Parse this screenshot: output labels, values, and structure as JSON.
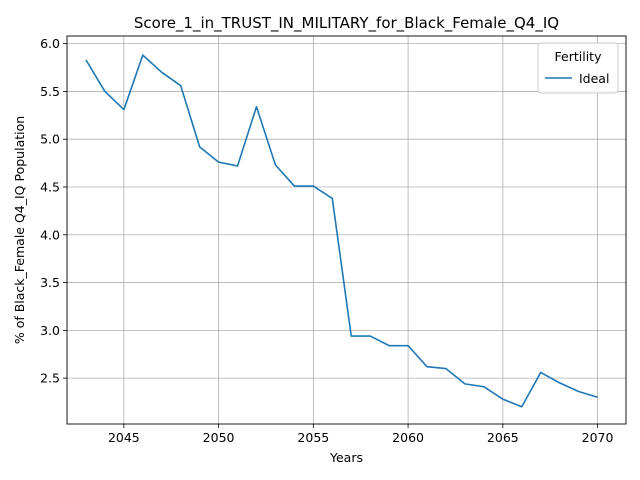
{
  "chart_data": {
    "type": "line",
    "title": "Score_1_in_TRUST_IN_MILITARY_for_Black_Female_Q4_IQ",
    "xlabel": "Years",
    "ylabel": "% of Black_Female Q4_IQ Population",
    "xlim": [
      2042,
      2071.5
    ],
    "ylim": [
      2.02,
      6.08
    ],
    "xticks": [
      2045,
      2050,
      2055,
      2060,
      2065,
      2070
    ],
    "yticks": [
      2.5,
      3.0,
      3.5,
      4.0,
      4.5,
      5.0,
      5.5,
      6.0
    ],
    "xtick_labels": [
      "2045",
      "2050",
      "2055",
      "2060",
      "2065",
      "2070"
    ],
    "ytick_labels": [
      "2.5",
      "3.0",
      "3.5",
      "4.0",
      "4.5",
      "5.0",
      "5.5",
      "6.0"
    ],
    "grid": true,
    "legend": {
      "title": "Fertility",
      "placement": "top-right"
    },
    "series": [
      {
        "name": "Ideal",
        "color": "#1f77b4",
        "x": [
          2043,
          2044,
          2045,
          2046,
          2047,
          2048,
          2049,
          2050,
          2051,
          2052,
          2053,
          2054,
          2055,
          2056,
          2057,
          2058,
          2059,
          2060,
          2061,
          2062,
          2063,
          2064,
          2065,
          2066,
          2067,
          2068,
          2069,
          2070
        ],
        "y": [
          5.83,
          5.5,
          5.31,
          5.88,
          5.7,
          5.56,
          4.92,
          4.76,
          4.72,
          5.34,
          4.73,
          4.51,
          4.51,
          4.38,
          2.94,
          2.94,
          2.84,
          2.84,
          2.62,
          2.6,
          2.44,
          2.41,
          2.28,
          2.2,
          2.56,
          2.45,
          2.36,
          2.3
        ]
      }
    ]
  }
}
